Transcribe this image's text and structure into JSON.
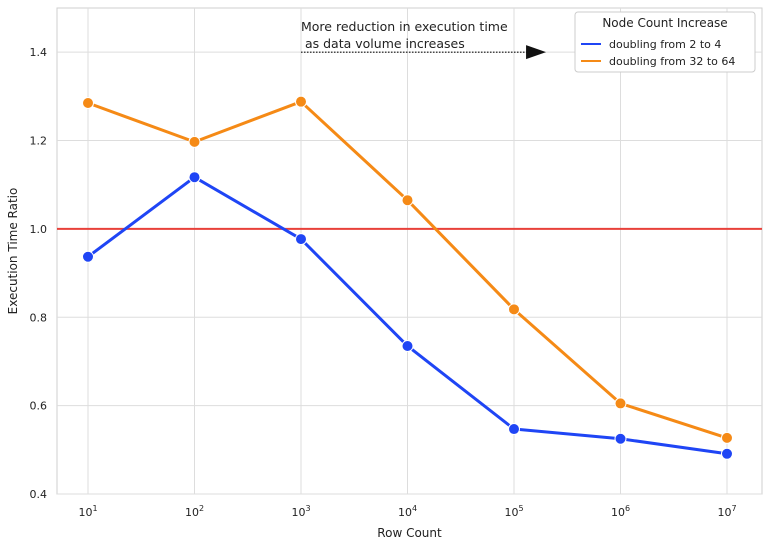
{
  "chart_data": {
    "type": "line",
    "x": [
      10,
      100,
      1000,
      10000,
      100000,
      1000000,
      10000000
    ],
    "x_tick_labels": [
      {
        "base": "10",
        "exp": "1"
      },
      {
        "base": "10",
        "exp": "2"
      },
      {
        "base": "10",
        "exp": "3"
      },
      {
        "base": "10",
        "exp": "4"
      },
      {
        "base": "10",
        "exp": "5"
      },
      {
        "base": "10",
        "exp": "6"
      },
      {
        "base": "10",
        "exp": "7"
      }
    ],
    "x_scale": "log",
    "xlabel": "Row Count",
    "ylabel": "Execution Time Ratio",
    "ylim": [
      0.4,
      1.5
    ],
    "y_ticks": [
      0.4,
      0.6,
      0.8,
      1.0,
      1.2,
      1.4
    ],
    "y_tick_labels": [
      "0.4",
      "0.6",
      "0.8",
      "1.0",
      "1.2",
      "1.4"
    ],
    "grid": true,
    "reference_line": {
      "y": 1.0,
      "color": "#e8413a"
    },
    "series": [
      {
        "name": "doubling from 2 to 4",
        "color": "#1f45f5",
        "values": [
          0.937,
          1.117,
          0.977,
          0.735,
          0.547,
          0.525,
          0.491
        ]
      },
      {
        "name": "doubling from 32 to 64",
        "color": "#f58a16",
        "values": [
          1.285,
          1.197,
          1.288,
          1.065,
          0.818,
          0.605,
          0.527
        ]
      }
    ],
    "legend": {
      "title": "Node Count Increase",
      "placement": "top-right"
    },
    "annotation": {
      "lines": [
        "More reduction in execution time",
        " as data volume increases"
      ],
      "arrow_from_x": 1000,
      "arrow_to_x": 200000,
      "arrow_y": 1.4
    }
  }
}
